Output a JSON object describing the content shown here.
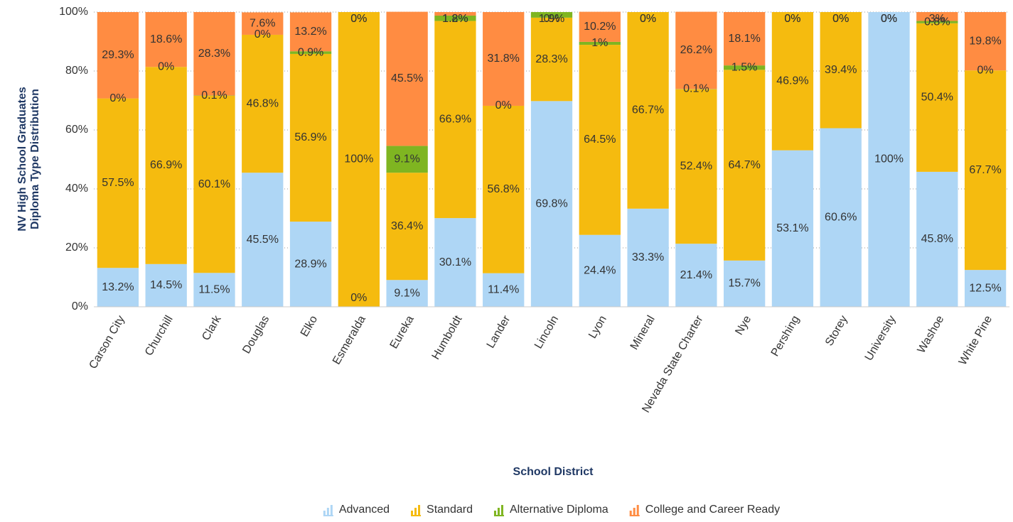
{
  "chart_data": {
    "type": "bar",
    "y_label": [
      "NV High School Graduates",
      "Diploma Type Distribution"
    ],
    "x_label": "School District",
    "categories": [
      "Carson City",
      "Churchill",
      "Clark",
      "Douglas",
      "Elko",
      "Esmeralda",
      "Eureka",
      "Humboldt",
      "Lander",
      "Lincoln",
      "Lyon",
      "Mineral",
      "Nevada State Charter",
      "Nye",
      "Pershing",
      "Storey",
      "University",
      "Washoe",
      "White Pine"
    ],
    "series": [
      {
        "name": "Advanced",
        "color": "#aed6f5",
        "values": [
          13.2,
          14.5,
          11.5,
          45.5,
          28.9,
          0,
          9.1,
          30.1,
          11.4,
          69.8,
          24.4,
          33.3,
          21.4,
          15.7,
          53.1,
          60.6,
          100,
          45.8,
          12.5
        ],
        "value_labels": [
          "13.2%",
          "14.5%",
          "11.5%",
          "45.5%",
          "28.9%",
          "0%",
          "9.1%",
          "30.1%",
          "11.4%",
          "69.8%",
          "24.4%",
          "33.3%",
          "21.4%",
          "15.7%",
          "53.1%",
          "60.6%",
          "100%",
          "45.8%",
          "12.5%"
        ]
      },
      {
        "name": "Standard",
        "color": "#f5bb0f",
        "values": [
          57.5,
          66.9,
          60.1,
          46.8,
          56.9,
          100,
          36.4,
          66.9,
          56.8,
          28.3,
          64.5,
          66.7,
          52.4,
          64.7,
          46.9,
          39.4,
          0,
          50.4,
          67.7
        ],
        "value_labels": [
          "57.5%",
          "66.9%",
          "60.1%",
          "46.8%",
          "56.9%",
          "100%",
          "36.4%",
          "66.9%",
          "56.8%",
          "28.3%",
          "64.5%",
          "66.7%",
          "52.4%",
          "64.7%",
          "46.9%",
          "39.4%",
          "0%",
          "50.4%",
          "67.7%"
        ]
      },
      {
        "name": "Alternative Diploma",
        "color": "#7fb521",
        "values": [
          0,
          0,
          0.1,
          0,
          0.9,
          0,
          9.1,
          1.8,
          0,
          1.9,
          1,
          0,
          0.1,
          1.5,
          0,
          0,
          0,
          0.8,
          0
        ],
        "value_labels": [
          "0%",
          "0%",
          "0.1%",
          "0%",
          "0.9%",
          "0%",
          "9.1%",
          "1.8%",
          "0%",
          "1.9%",
          "1%",
          "0%",
          "0.1%",
          "1.5%",
          "0%",
          "0%",
          "0%",
          "0.8%",
          "0%"
        ]
      },
      {
        "name": "College and Career Ready",
        "color": "#ff8c42",
        "values": [
          29.3,
          18.6,
          28.3,
          7.6,
          13.2,
          0,
          45.5,
          1.2,
          31.8,
          0,
          10.2,
          0,
          26.2,
          18.1,
          0,
          0,
          0,
          3,
          19.8
        ],
        "value_labels": [
          "29.3%",
          "18.6%",
          "28.3%",
          "7.6%",
          "13.2%",
          "0%",
          "45.5%",
          "1.2%",
          "31.8%",
          "0%",
          "10.2%",
          "0%",
          "26.2%",
          "18.1%",
          "0%",
          "0%",
          "0%",
          "3%",
          "19.8%"
        ]
      }
    ],
    "ylim": [
      0,
      100
    ],
    "yticks": [
      {
        "value": 0,
        "label": "0%"
      },
      {
        "value": 20,
        "label": "20%"
      },
      {
        "value": 40,
        "label": "40%"
      },
      {
        "value": 60,
        "label": "60%"
      },
      {
        "value": 80,
        "label": "80%"
      },
      {
        "value": 100,
        "label": "100%"
      }
    ],
    "grid": true,
    "legend": "bottom"
  }
}
